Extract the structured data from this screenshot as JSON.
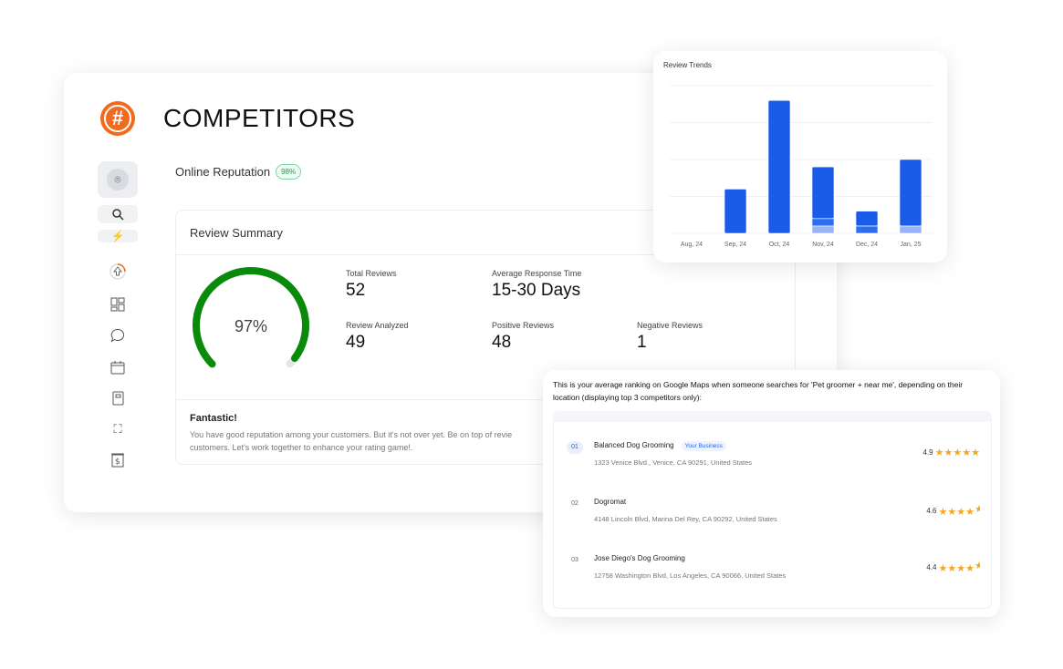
{
  "app": {
    "title": "COMPETITORS",
    "logo_icon": "hashtag-logo"
  },
  "sidebar": {
    "items": [
      {
        "icon": "location-pin-icon",
        "active": true
      },
      {
        "icon": "search-icon"
      },
      {
        "icon": "lightning-icon"
      },
      {
        "icon": "upload-progress-icon"
      },
      {
        "icon": "dashboard-grid-icon"
      },
      {
        "icon": "chat-bubble-icon"
      },
      {
        "icon": "calendar-icon"
      },
      {
        "icon": "notebook-icon"
      },
      {
        "icon": "team-icon"
      },
      {
        "icon": "invoice-icon"
      }
    ]
  },
  "reputation": {
    "label": "Online Reputation",
    "badge": "98%"
  },
  "summary": {
    "title": "Review Summary",
    "gauge_value": "97%",
    "gauge_percent": 97,
    "gauge_color": "#0a8a0a",
    "stats": [
      {
        "label": "Total Reviews",
        "value": "52"
      },
      {
        "label": "Average Response Time",
        "value": "15-30 Days"
      },
      {
        "label": "Review Analyzed",
        "value": "49"
      },
      {
        "label": "Positive Reviews",
        "value": "48"
      },
      {
        "label": "Negative Reviews",
        "value": "1"
      }
    ],
    "feedback_title": "Fantastic!",
    "feedback_line1": "You have good reputation among your customers. But it's not over yet. Be on top of revie",
    "feedback_line2": "customers. Let's work together to enhance your rating game!."
  },
  "chart_data": {
    "type": "bar",
    "stacked": true,
    "title": "Review Trends",
    "categories": [
      "Aug, 24",
      "Sep, 24",
      "Oct, 24",
      "Nov, 24",
      "Dec, 24",
      "Jan, 25"
    ],
    "ylim": [
      0,
      20
    ],
    "grid": true,
    "series": [
      {
        "color": "#97b4fb",
        "values": [
          0,
          0,
          0,
          1,
          0,
          1
        ]
      },
      {
        "color": "#2f6df0",
        "values": [
          0,
          0,
          0,
          1,
          1,
          0
        ]
      },
      {
        "color": "#1a5ce8",
        "values": [
          0,
          6,
          18,
          7,
          2,
          9
        ]
      }
    ]
  },
  "competitors": {
    "intro": "This is your average ranking on Google Maps when someone searches for 'Pet groomer + near me', depending on their location (displaying top 3 competitors only):",
    "items": [
      {
        "rank": "01",
        "name": "Balanced Dog Grooming",
        "tag": "Your Business",
        "address": "1323 Venice Blvd., Venice, CA 90291, United States",
        "rating": "4.9",
        "stars": 5
      },
      {
        "rank": "02",
        "name": "Dogromat",
        "address": "4148 Lincoln Blvd, Marina Del Rey, CA 90292, United States",
        "rating": "4.6",
        "stars": 4.5
      },
      {
        "rank": "03",
        "name": "Jose Diego's Dog Grooming",
        "address": "12758 Washington Blvd, Los Angeles, CA 90066, United States",
        "rating": "4.4",
        "stars": 4.5
      }
    ]
  }
}
